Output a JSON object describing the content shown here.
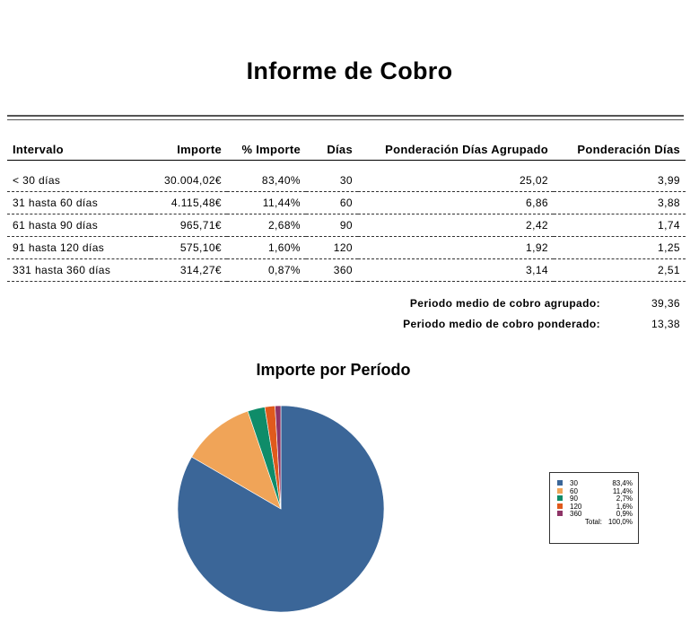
{
  "report": {
    "title": "Informe de Cobro"
  },
  "table": {
    "headers": {
      "interval": "Intervalo",
      "amount": "Importe",
      "percent": "% Importe",
      "days": "Días",
      "grouped_weight": "Ponderación Días Agrupado",
      "weight": "Ponderación Días"
    },
    "rows": [
      {
        "interval": "< 30 días",
        "amount": "30.004,02€",
        "percent": "83,40%",
        "days": "30",
        "grouped_weight": "25,02",
        "weight": "3,99"
      },
      {
        "interval": "31 hasta 60 días",
        "amount": "4.115,48€",
        "percent": "11,44%",
        "days": "60",
        "grouped_weight": "6,86",
        "weight": "3,88"
      },
      {
        "interval": "61 hasta 90 días",
        "amount": "965,71€",
        "percent": "2,68%",
        "days": "90",
        "grouped_weight": "2,42",
        "weight": "1,74"
      },
      {
        "interval": "91 hasta 120 días",
        "amount": "575,10€",
        "percent": "1,60%",
        "days": "120",
        "grouped_weight": "1,92",
        "weight": "1,25"
      },
      {
        "interval": "331 hasta 360 días",
        "amount": "314,27€",
        "percent": "0,87%",
        "days": "360",
        "grouped_weight": "3,14",
        "weight": "2,51"
      }
    ]
  },
  "summary": {
    "grouped_label": "Periodo medio de cobro agrupado:",
    "grouped_value": "39,36",
    "weighted_label": "Periodo medio de cobro ponderado:",
    "weighted_value": "13,38"
  },
  "chart_data": {
    "type": "pie",
    "title": "Importe por Período",
    "slices": [
      {
        "label": "30",
        "value": 83.4,
        "pct_label": "83,4%",
        "color": "#3b6698"
      },
      {
        "label": "60",
        "value": 11.4,
        "pct_label": "11,4%",
        "color": "#f0a458"
      },
      {
        "label": "90",
        "value": 2.7,
        "pct_label": "2,7%",
        "color": "#0f8c69"
      },
      {
        "label": "120",
        "value": 1.6,
        "pct_label": "1,6%",
        "color": "#e05a1c"
      },
      {
        "label": "360",
        "value": 0.9,
        "pct_label": "0,9%",
        "color": "#8e3467"
      }
    ],
    "legend": {
      "placement": "right",
      "total_label": "Total:",
      "total_value": "100,0%"
    }
  }
}
